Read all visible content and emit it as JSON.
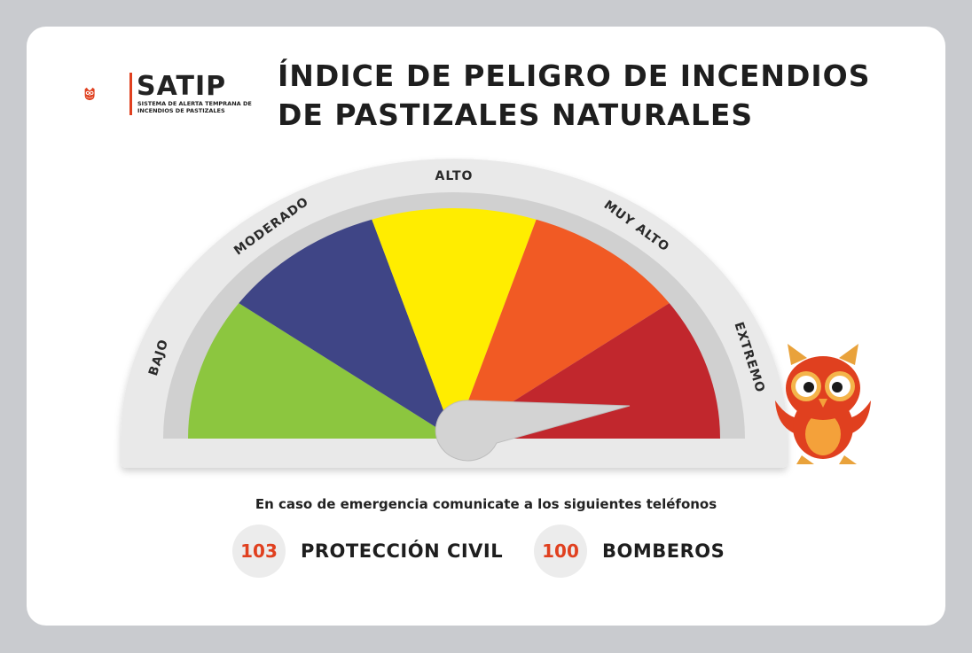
{
  "logo": {
    "name": "SATIP",
    "subtitle": "SISTEMA DE ALERTA TEMPRANA DE INCENDIOS DE PASTIZALES"
  },
  "title": {
    "line1": "ÍNDICE DE PELIGRO DE INCENDIOS",
    "line2": "DE PASTIZALES NATURALES"
  },
  "gauge": {
    "levels": [
      {
        "label": "BAJO",
        "color": "#8cc63f"
      },
      {
        "label": "MODERADO",
        "color": "#3f4586"
      },
      {
        "label": "ALTO",
        "color": "#ffed00"
      },
      {
        "label": "MUY ALTO",
        "color": "#f15a24"
      },
      {
        "label": "EXTREMO",
        "color": "#c1272d"
      }
    ],
    "current_level": "EXTREMO"
  },
  "emergency": {
    "text": "En caso de emergencia comunicate a los siguientes teléfonos",
    "contacts": [
      {
        "number": "103",
        "label": "PROTECCIÓN CIVIL"
      },
      {
        "number": "100",
        "label": "BOMBEROS"
      }
    ]
  },
  "colors": {
    "accent": "#e0401f",
    "background": "#c9cbcf"
  }
}
